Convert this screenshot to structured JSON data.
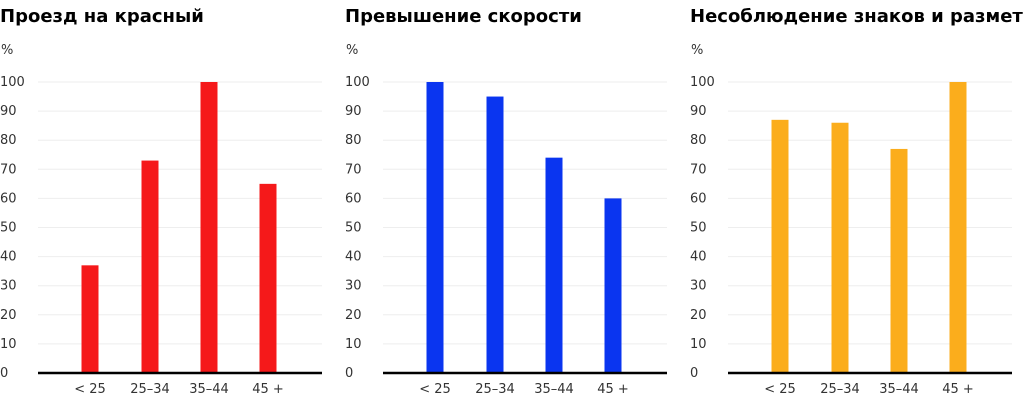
{
  "chart_data": [
    {
      "type": "bar",
      "title": "Проезд на красный",
      "ylabel": "%",
      "categories": [
        "< 25",
        "25–34",
        "35–44",
        "45 +"
      ],
      "values": [
        37,
        73,
        100,
        65
      ],
      "ylim": [
        0,
        100
      ],
      "yticks": [
        0,
        10,
        20,
        30,
        40,
        50,
        60,
        70,
        80,
        90,
        100
      ],
      "grid": true,
      "color": "#f5191a"
    },
    {
      "type": "bar",
      "title": "Превышение скорости",
      "ylabel": "%",
      "categories": [
        "< 25",
        "25–34",
        "35–44",
        "45 +"
      ],
      "values": [
        100,
        95,
        74,
        60
      ],
      "ylim": [
        0,
        100
      ],
      "yticks": [
        0,
        10,
        20,
        30,
        40,
        50,
        60,
        70,
        80,
        90,
        100
      ],
      "grid": true,
      "color": "#0a35f0"
    },
    {
      "type": "bar",
      "title": "Несоблюдение знаков и разметки",
      "ylabel": "%",
      "categories": [
        "< 25",
        "25–34",
        "35–44",
        "45 +"
      ],
      "values": [
        87,
        86,
        77,
        100
      ],
      "ylim": [
        0,
        100
      ],
      "yticks": [
        0,
        10,
        20,
        30,
        40,
        50,
        60,
        70,
        80,
        90,
        100
      ],
      "grid": true,
      "color": "#fbad1c"
    }
  ]
}
